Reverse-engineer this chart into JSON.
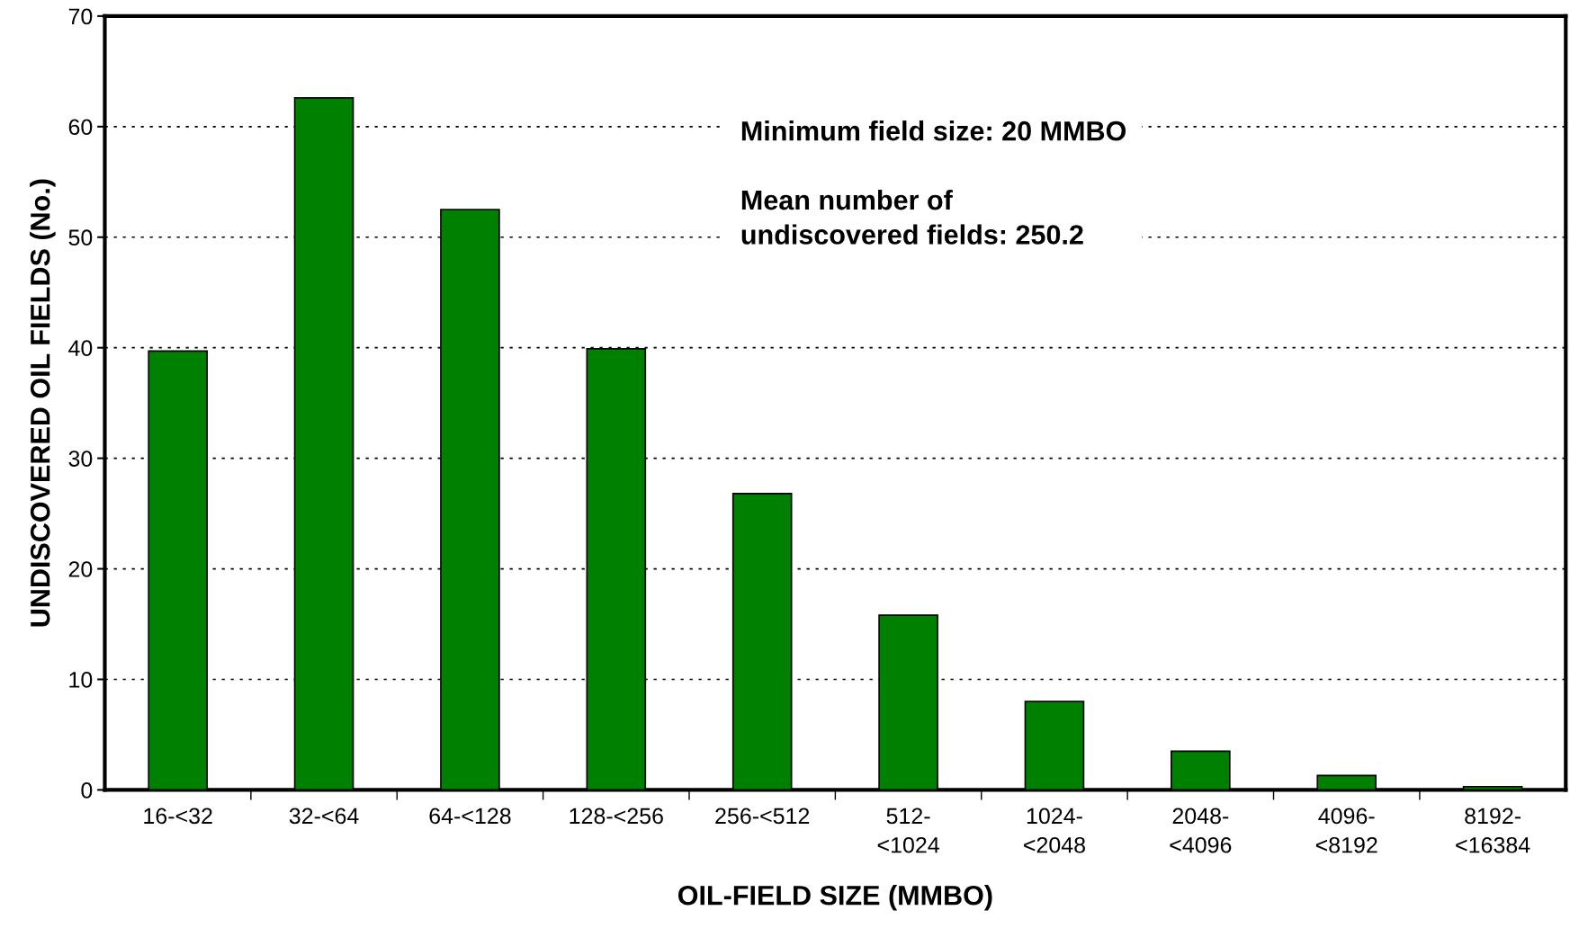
{
  "chart_data": {
    "type": "bar",
    "xlabel": "OIL-FIELD SIZE (MMBO)",
    "ylabel": "UNDISCOVERED OIL FIELDS (No.)",
    "categories": [
      "16-<32",
      "32-<64",
      "64-<128",
      "128-<256",
      "256-<512",
      "512-\n<1024",
      "1024-\n<2048",
      "2048-\n<4096",
      "4096-\n<8192",
      "8192-\n<16384"
    ],
    "values": [
      39.7,
      62.6,
      52.5,
      39.9,
      26.8,
      15.8,
      8.0,
      3.5,
      1.3,
      0.3
    ],
    "color": "#008000",
    "ylim": [
      0,
      70
    ],
    "yticks": [
      0,
      10,
      20,
      30,
      40,
      50,
      60,
      70
    ],
    "grid": "y",
    "annotations": [
      "Minimum field size: 20 MMBO\n\nMean number of\nundiscovered fields: 250.2"
    ]
  }
}
